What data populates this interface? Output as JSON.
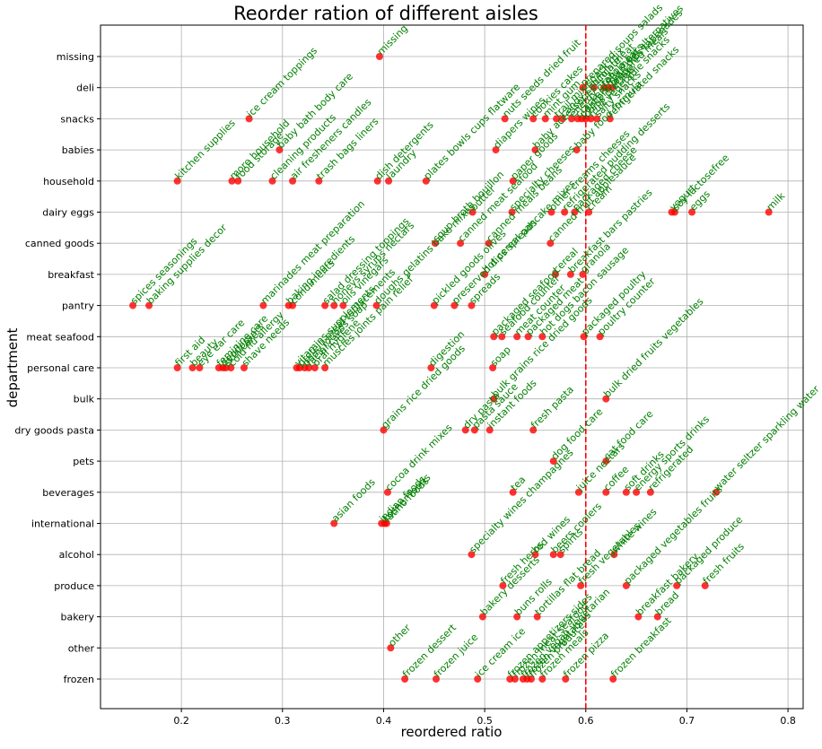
{
  "chart_data": {
    "type": "scatter",
    "title": "Reorder ration of different aisles",
    "xlabel": "reordered ratio",
    "ylabel": "department",
    "xlim": [
      0.12,
      0.815
    ],
    "xticks": [
      "0.2",
      "0.3",
      "0.4",
      "0.5",
      "0.6",
      "0.7",
      "0.8"
    ],
    "xtick_values": [
      0.2,
      0.3,
      0.4,
      0.5,
      0.6,
      0.7,
      0.8
    ],
    "grid": true,
    "reference_line": {
      "x": 0.6,
      "color": "#ff0000",
      "style": "dashed"
    },
    "colors": {
      "point": "#ff0000",
      "label": "#008000",
      "grid": "#b0b0b0"
    },
    "departments": [
      "missing",
      "deli",
      "snacks",
      "babies",
      "household",
      "dairy eggs",
      "canned goods",
      "breakfast",
      "pantry",
      "meat seafood",
      "personal care",
      "bulk",
      "dry goods pasta",
      "pets",
      "beverages",
      "international",
      "alcohol",
      "produce",
      "bakery",
      "other",
      "frozen"
    ],
    "points": [
      {
        "department": "missing",
        "aisle": "missing",
        "x": 0.396
      },
      {
        "department": "deli",
        "aisle": "prepared soups salads",
        "x": 0.597
      },
      {
        "department": "deli",
        "aisle": "lunch meat",
        "x": 0.608
      },
      {
        "department": "deli",
        "aisle": "tofu meat alternatives",
        "x": 0.618
      },
      {
        "department": "deli",
        "aisle": "fresh dips tapenades",
        "x": 0.622
      },
      {
        "department": "deli",
        "aisle": "prepared meals",
        "x": 0.626
      },
      {
        "department": "snacks",
        "aisle": "ice cream toppings",
        "x": 0.267
      },
      {
        "department": "snacks",
        "aisle": "nuts seeds dried fruit",
        "x": 0.52
      },
      {
        "department": "snacks",
        "aisle": "cookies cakes",
        "x": 0.548
      },
      {
        "department": "snacks",
        "aisle": "mint gum",
        "x": 0.56
      },
      {
        "department": "snacks",
        "aisle": "trail mix snack mix",
        "x": 0.571
      },
      {
        "department": "snacks",
        "aisle": "candy chocolate",
        "x": 0.577
      },
      {
        "department": "snacks",
        "aisle": "energy granola bars",
        "x": 0.586
      },
      {
        "department": "snacks",
        "aisle": "crackers",
        "x": 0.592
      },
      {
        "department": "snacks",
        "aisle": "popcorn jerky",
        "x": 0.596
      },
      {
        "department": "snacks",
        "aisle": "chips pretzels",
        "x": 0.6
      },
      {
        "department": "snacks",
        "aisle": "fruit vegetable snacks",
        "x": 0.605
      },
      {
        "department": "snacks",
        "aisle": "salty snacks",
        "x": 0.611
      },
      {
        "department": "snacks",
        "aisle": "refrigerated snacks",
        "x": 0.624
      },
      {
        "department": "babies",
        "aisle": "baby bath body care",
        "x": 0.297
      },
      {
        "department": "babies",
        "aisle": "diapers wipes",
        "x": 0.511
      },
      {
        "department": "babies",
        "aisle": "baby accessories",
        "x": 0.55
      },
      {
        "department": "babies",
        "aisle": "baby food formula",
        "x": 0.591
      },
      {
        "department": "household",
        "aisle": "kitchen supplies",
        "x": 0.196
      },
      {
        "department": "household",
        "aisle": "more household",
        "x": 0.25
      },
      {
        "department": "household",
        "aisle": "food storage",
        "x": 0.256
      },
      {
        "department": "household",
        "aisle": "cleaning products",
        "x": 0.29
      },
      {
        "department": "household",
        "aisle": "air fresheners candles",
        "x": 0.31
      },
      {
        "department": "household",
        "aisle": "trash bags liners",
        "x": 0.336
      },
      {
        "department": "household",
        "aisle": "dish detergents",
        "x": 0.394
      },
      {
        "department": "household",
        "aisle": "laundry",
        "x": 0.405
      },
      {
        "department": "household",
        "aisle": "plates bowls cups flatware",
        "x": 0.442
      },
      {
        "department": "household",
        "aisle": "paper goods",
        "x": 0.528
      },
      {
        "department": "dairy eggs",
        "aisle": "butter",
        "x": 0.488
      },
      {
        "department": "dairy eggs",
        "aisle": "specialty cheeses",
        "x": 0.527
      },
      {
        "department": "dairy eggs",
        "aisle": "other creams cheeses",
        "x": 0.566
      },
      {
        "department": "dairy eggs",
        "aisle": "refrigerated pudding desserts",
        "x": 0.579
      },
      {
        "department": "dairy eggs",
        "aisle": "packaged cheese",
        "x": 0.589
      },
      {
        "department": "dairy eggs",
        "aisle": "cream",
        "x": 0.603
      },
      {
        "department": "dairy eggs",
        "aisle": "yogurt",
        "x": 0.685
      },
      {
        "department": "dairy eggs",
        "aisle": "soy lactosefree",
        "x": 0.688
      },
      {
        "department": "dairy eggs",
        "aisle": "eggs",
        "x": 0.705
      },
      {
        "department": "dairy eggs",
        "aisle": "milk",
        "x": 0.781
      },
      {
        "department": "canned goods",
        "aisle": "soup broth bouillon",
        "x": 0.451
      },
      {
        "department": "canned goods",
        "aisle": "canned meat seafood",
        "x": 0.476
      },
      {
        "department": "canned goods",
        "aisle": "canned meals beans",
        "x": 0.504
      },
      {
        "department": "canned goods",
        "aisle": "canned fruit applesauce",
        "x": 0.565
      },
      {
        "department": "breakfast",
        "aisle": "hot cereal pancake mixes",
        "x": 0.5
      },
      {
        "department": "breakfast",
        "aisle": "cereal",
        "x": 0.57
      },
      {
        "department": "breakfast",
        "aisle": "breakfast bars pastries",
        "x": 0.585
      },
      {
        "department": "breakfast",
        "aisle": "granola",
        "x": 0.597
      },
      {
        "department": "pantry",
        "aisle": "spices seasonings",
        "x": 0.152
      },
      {
        "department": "pantry",
        "aisle": "baking supplies decor",
        "x": 0.168
      },
      {
        "department": "pantry",
        "aisle": "marinades meat preparation",
        "x": 0.281
      },
      {
        "department": "pantry",
        "aisle": "baking ingredients",
        "x": 0.306
      },
      {
        "department": "pantry",
        "aisle": "condiments",
        "x": 0.31
      },
      {
        "department": "pantry",
        "aisle": "salad dressing toppings",
        "x": 0.342
      },
      {
        "department": "pantry",
        "aisle": "honeys syrups nectars",
        "x": 0.351
      },
      {
        "department": "pantry",
        "aisle": "oils vinegars",
        "x": 0.36
      },
      {
        "department": "pantry",
        "aisle": "doughs gelatins bake mixes",
        "x": 0.393
      },
      {
        "department": "pantry",
        "aisle": "pickled goods olives",
        "x": 0.45
      },
      {
        "department": "pantry",
        "aisle": "preserved dips spreads",
        "x": 0.47
      },
      {
        "department": "pantry",
        "aisle": "spreads",
        "x": 0.487
      },
      {
        "department": "meat seafood",
        "aisle": "packaged seafood",
        "x": 0.509
      },
      {
        "department": "meat seafood",
        "aisle": "seafood counter",
        "x": 0.517
      },
      {
        "department": "meat seafood",
        "aisle": "meat counter",
        "x": 0.532
      },
      {
        "department": "meat seafood",
        "aisle": "packaged meat",
        "x": 0.543
      },
      {
        "department": "meat seafood",
        "aisle": "hot dogs bacon sausage",
        "x": 0.557
      },
      {
        "department": "meat seafood",
        "aisle": "packaged poultry",
        "x": 0.598
      },
      {
        "department": "meat seafood",
        "aisle": "poultry counter",
        "x": 0.614
      },
      {
        "department": "personal care",
        "aisle": "first aid",
        "x": 0.196
      },
      {
        "department": "personal care",
        "aisle": "beauty",
        "x": 0.211
      },
      {
        "department": "personal care",
        "aisle": "eye ear care",
        "x": 0.218
      },
      {
        "department": "personal care",
        "aisle": "feminine care",
        "x": 0.237
      },
      {
        "department": "personal care",
        "aisle": "deodorants",
        "x": 0.241
      },
      {
        "department": "personal care",
        "aisle": "skin care",
        "x": 0.244
      },
      {
        "department": "personal care",
        "aisle": "cold flu allergy",
        "x": 0.249
      },
      {
        "department": "personal care",
        "aisle": "shave needs",
        "x": 0.262
      },
      {
        "department": "personal care",
        "aisle": "vitamins supplements",
        "x": 0.314
      },
      {
        "department": "personal care",
        "aisle": "protein meal replacements",
        "x": 0.317
      },
      {
        "department": "personal care",
        "aisle": "body lotions soap",
        "x": 0.322
      },
      {
        "department": "personal care",
        "aisle": "facial care",
        "x": 0.326
      },
      {
        "department": "personal care",
        "aisle": "oral hygiene",
        "x": 0.332
      },
      {
        "department": "personal care",
        "aisle": "muscles joints pain relief",
        "x": 0.342
      },
      {
        "department": "personal care",
        "aisle": "digestion",
        "x": 0.447
      },
      {
        "department": "personal care",
        "aisle": "soap",
        "x": 0.508
      },
      {
        "department": "bulk",
        "aisle": "bulk grains rice dried goods",
        "x": 0.509
      },
      {
        "department": "bulk",
        "aisle": "bulk dried fruits vegetables",
        "x": 0.62
      },
      {
        "department": "dry goods pasta",
        "aisle": "grains rice dried goods",
        "x": 0.4
      },
      {
        "department": "dry goods pasta",
        "aisle": "dry pasta",
        "x": 0.481
      },
      {
        "department": "dry goods pasta",
        "aisle": "pasta sauce",
        "x": 0.49
      },
      {
        "department": "dry goods pasta",
        "aisle": "instant foods",
        "x": 0.505
      },
      {
        "department": "dry goods pasta",
        "aisle": "fresh pasta",
        "x": 0.548
      },
      {
        "department": "pets",
        "aisle": "dog food care",
        "x": 0.568
      },
      {
        "department": "pets",
        "aisle": "cat food care",
        "x": 0.62
      },
      {
        "department": "beverages",
        "aisle": "cocoa drink mixes",
        "x": 0.404
      },
      {
        "department": "beverages",
        "aisle": "tea",
        "x": 0.528
      },
      {
        "department": "beverages",
        "aisle": "juice nectars",
        "x": 0.593
      },
      {
        "department": "beverages",
        "aisle": "coffee",
        "x": 0.62
      },
      {
        "department": "beverages",
        "aisle": "soft drinks",
        "x": 0.64
      },
      {
        "department": "beverages",
        "aisle": "energy sports drinks",
        "x": 0.65
      },
      {
        "department": "beverages",
        "aisle": "refrigerated",
        "x": 0.664
      },
      {
        "department": "beverages",
        "aisle": "water seltzer sparkling water",
        "x": 0.729
      },
      {
        "department": "international",
        "aisle": "asian foods",
        "x": 0.351
      },
      {
        "department": "international",
        "aisle": "indian foods",
        "x": 0.398
      },
      {
        "department": "international",
        "aisle": "kosher foods",
        "x": 0.401
      },
      {
        "department": "international",
        "aisle": "latino foods",
        "x": 0.403
      },
      {
        "department": "alcohol",
        "aisle": "specialty wines champagnes",
        "x": 0.487
      },
      {
        "department": "alcohol",
        "aisle": "red wines",
        "x": 0.55
      },
      {
        "department": "alcohol",
        "aisle": "beers coolers",
        "x": 0.568
      },
      {
        "department": "alcohol",
        "aisle": "spirits",
        "x": 0.575
      },
      {
        "department": "alcohol",
        "aisle": "white wines",
        "x": 0.628
      },
      {
        "department": "produce",
        "aisle": "fresh herbs",
        "x": 0.518
      },
      {
        "department": "produce",
        "aisle": "fresh vegetables",
        "x": 0.595
      },
      {
        "department": "produce",
        "aisle": "packaged vegetables fruits",
        "x": 0.64
      },
      {
        "department": "produce",
        "aisle": "packaged produce",
        "x": 0.69
      },
      {
        "department": "produce",
        "aisle": "fresh fruits",
        "x": 0.718
      },
      {
        "department": "bakery",
        "aisle": "bakery desserts",
        "x": 0.498
      },
      {
        "department": "bakery",
        "aisle": "buns rolls",
        "x": 0.532
      },
      {
        "department": "bakery",
        "aisle": "tortillas flat bread",
        "x": 0.552
      },
      {
        "department": "bakery",
        "aisle": "breakfast bakery",
        "x": 0.652
      },
      {
        "department": "bakery",
        "aisle": "bread",
        "x": 0.671
      },
      {
        "department": "other",
        "aisle": "other",
        "x": 0.407
      },
      {
        "department": "frozen",
        "aisle": "frozen dessert",
        "x": 0.421
      },
      {
        "department": "frozen",
        "aisle": "frozen juice",
        "x": 0.452
      },
      {
        "department": "frozen",
        "aisle": "ice cream ice",
        "x": 0.493
      },
      {
        "department": "frozen",
        "aisle": "frozen appetizers sides",
        "x": 0.525
      },
      {
        "department": "frozen",
        "aisle": "frozen meat seafood",
        "x": 0.53
      },
      {
        "department": "frozen",
        "aisle": "frozen vegan vegetarian",
        "x": 0.538
      },
      {
        "department": "frozen",
        "aisle": "frozen vegetables",
        "x": 0.542
      },
      {
        "department": "frozen",
        "aisle": "frozen produce",
        "x": 0.546
      },
      {
        "department": "frozen",
        "aisle": "frozen meals",
        "x": 0.557
      },
      {
        "department": "frozen",
        "aisle": "frozen pizza",
        "x": 0.58
      },
      {
        "department": "frozen",
        "aisle": "frozen breakfast",
        "x": 0.627
      }
    ]
  }
}
